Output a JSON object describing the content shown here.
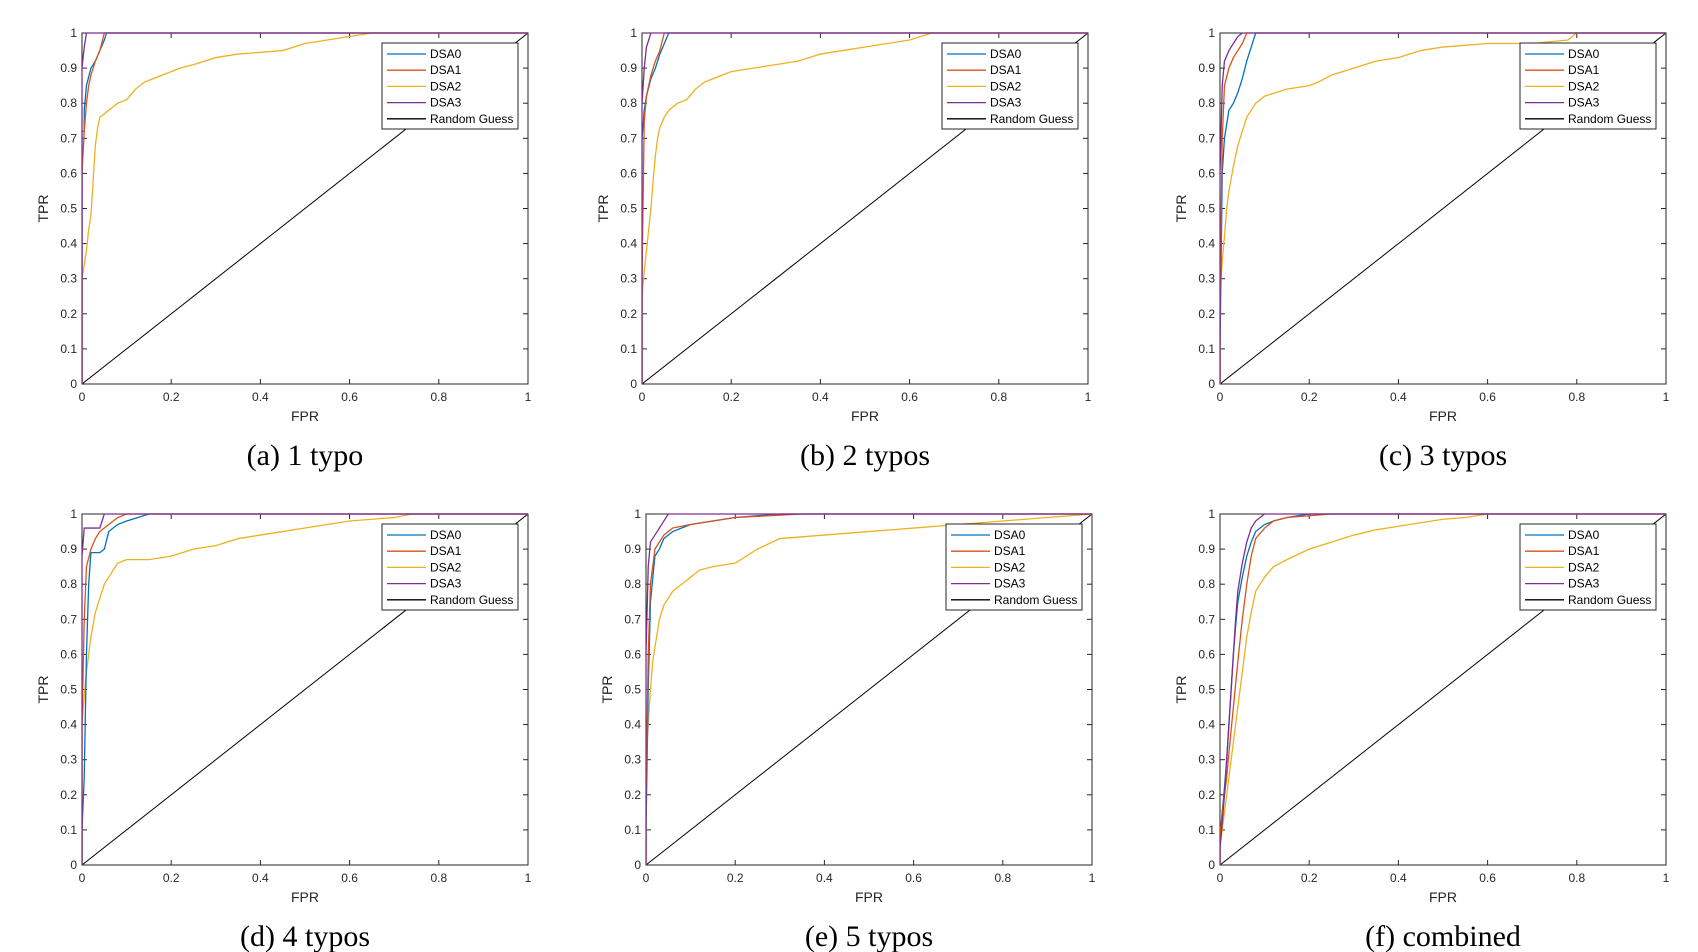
{
  "figure": {
    "legend_entries": [
      "DSA0",
      "DSA1",
      "DSA2",
      "DSA3",
      "Random Guess"
    ],
    "series_colors": {
      "DSA0": "#0072BD",
      "DSA1": "#D95319",
      "DSA2": "#EDB120",
      "DSA3": "#7E2F8E",
      "Random Guess": "#000000"
    }
  },
  "chart_data": [
    {
      "type": "line",
      "caption": "(a) 1 typo",
      "xlabel": "FPR",
      "ylabel": "TPR",
      "xlim": [
        0,
        1
      ],
      "ylim": [
        0,
        1
      ],
      "xticks": [
        "0",
        "0.2",
        "0.4",
        "0.6",
        "0.8",
        "1"
      ],
      "yticks": [
        "0",
        "0.1",
        "0.2",
        "0.3",
        "0.4",
        "0.5",
        "0.6",
        "0.7",
        "0.8",
        "0.9",
        "1"
      ],
      "legend_position": "top-right",
      "series": [
        {
          "name": "DSA0",
          "x": [
            0,
            0,
            0.005,
            0.005,
            0.01,
            0.02,
            0.03,
            0.04,
            0.05,
            0.055,
            1
          ],
          "y": [
            0,
            0.72,
            0.72,
            0.78,
            0.85,
            0.9,
            0.92,
            0.95,
            0.98,
            1,
            1
          ]
        },
        {
          "name": "DSA1",
          "x": [
            0,
            0,
            0.005,
            0.01,
            0.015,
            0.02,
            0.03,
            0.04,
            0.05,
            1
          ],
          "y": [
            0,
            0.6,
            0.72,
            0.8,
            0.85,
            0.88,
            0.92,
            0.95,
            1,
            1
          ]
        },
        {
          "name": "DSA2",
          "x": [
            0,
            0,
            0.005,
            0.01,
            0.015,
            0.02,
            0.025,
            0.03,
            0.035,
            0.04,
            0.05,
            0.06,
            0.07,
            0.08,
            0.1,
            0.12,
            0.14,
            0.16,
            0.18,
            0.2,
            0.22,
            0.25,
            0.3,
            0.35,
            0.45,
            0.5,
            0.55,
            0.6,
            0.65,
            1
          ],
          "y": [
            0,
            0.3,
            0.34,
            0.38,
            0.44,
            0.48,
            0.58,
            0.68,
            0.73,
            0.76,
            0.77,
            0.78,
            0.79,
            0.8,
            0.81,
            0.84,
            0.86,
            0.87,
            0.88,
            0.89,
            0.9,
            0.91,
            0.93,
            0.94,
            0.95,
            0.97,
            0.98,
            0.99,
            1,
            1
          ]
        },
        {
          "name": "DSA3",
          "x": [
            0,
            0,
            0.005,
            0.01,
            1
          ],
          "y": [
            0,
            0.9,
            0.96,
            1,
            1
          ]
        },
        {
          "name": "Random Guess",
          "x": [
            0,
            1
          ],
          "y": [
            0,
            1
          ]
        }
      ]
    },
    {
      "type": "line",
      "caption": "(b) 2 typos",
      "xlabel": "FPR",
      "ylabel": "TPR",
      "xlim": [
        0,
        1
      ],
      "ylim": [
        0,
        1
      ],
      "xticks": [
        "0",
        "0.2",
        "0.4",
        "0.6",
        "0.8",
        "1"
      ],
      "yticks": [
        "0",
        "0.1",
        "0.2",
        "0.3",
        "0.4",
        "0.5",
        "0.6",
        "0.7",
        "0.8",
        "0.9",
        "1"
      ],
      "legend_position": "top-right",
      "series": [
        {
          "name": "DSA0",
          "x": [
            0,
            0,
            0.005,
            0.01,
            0.02,
            0.03,
            0.04,
            0.05,
            0.06,
            1
          ],
          "y": [
            0,
            0.7,
            0.78,
            0.82,
            0.87,
            0.9,
            0.94,
            0.97,
            1,
            1
          ]
        },
        {
          "name": "DSA1",
          "x": [
            0,
            0,
            0.005,
            0.01,
            0.02,
            0.03,
            0.04,
            0.05,
            1
          ],
          "y": [
            0,
            0.3,
            0.75,
            0.82,
            0.88,
            0.92,
            0.95,
            1,
            1
          ]
        },
        {
          "name": "DSA2",
          "x": [
            0,
            0,
            0.005,
            0.01,
            0.015,
            0.02,
            0.025,
            0.03,
            0.035,
            0.04,
            0.05,
            0.06,
            0.08,
            0.1,
            0.12,
            0.14,
            0.16,
            0.18,
            0.2,
            0.25,
            0.3,
            0.35,
            0.4,
            0.45,
            0.5,
            0.55,
            0.6,
            0.65,
            1
          ],
          "y": [
            0,
            0.25,
            0.32,
            0.38,
            0.44,
            0.5,
            0.58,
            0.65,
            0.7,
            0.73,
            0.76,
            0.78,
            0.8,
            0.81,
            0.84,
            0.86,
            0.87,
            0.88,
            0.89,
            0.9,
            0.91,
            0.92,
            0.94,
            0.95,
            0.96,
            0.97,
            0.98,
            1,
            1
          ]
        },
        {
          "name": "DSA3",
          "x": [
            0,
            0,
            0.005,
            0.01,
            0.02,
            1
          ],
          "y": [
            0,
            0.8,
            0.9,
            0.96,
            1,
            1
          ]
        },
        {
          "name": "Random Guess",
          "x": [
            0,
            1
          ],
          "y": [
            0,
            1
          ]
        }
      ]
    },
    {
      "type": "line",
      "caption": "(c) 3 typos",
      "xlabel": "FPR",
      "ylabel": "TPR",
      "xlim": [
        0,
        1
      ],
      "ylim": [
        0,
        1
      ],
      "xticks": [
        "0",
        "0.2",
        "0.4",
        "0.6",
        "0.8",
        "1"
      ],
      "yticks": [
        "0",
        "0.1",
        "0.2",
        "0.3",
        "0.4",
        "0.5",
        "0.6",
        "0.7",
        "0.8",
        "0.9",
        "1"
      ],
      "legend_position": "top-right",
      "series": [
        {
          "name": "DSA0",
          "x": [
            0,
            0,
            0.005,
            0.01,
            0.02,
            0.03,
            0.04,
            0.05,
            0.06,
            0.07,
            0.08,
            1
          ],
          "y": [
            0,
            0.1,
            0.6,
            0.7,
            0.78,
            0.8,
            0.83,
            0.87,
            0.92,
            0.96,
            1,
            1
          ]
        },
        {
          "name": "DSA1",
          "x": [
            0,
            0,
            0.005,
            0.01,
            0.02,
            0.03,
            0.04,
            0.05,
            0.06,
            1
          ],
          "y": [
            0,
            0.25,
            0.7,
            0.85,
            0.9,
            0.93,
            0.95,
            0.97,
            1,
            1
          ]
        },
        {
          "name": "DSA2",
          "x": [
            0,
            0,
            0.005,
            0.01,
            0.015,
            0.02,
            0.03,
            0.04,
            0.05,
            0.06,
            0.08,
            0.1,
            0.15,
            0.2,
            0.22,
            0.25,
            0.3,
            0.35,
            0.4,
            0.45,
            0.5,
            0.6,
            0.7,
            0.78,
            0.8,
            1
          ],
          "y": [
            0,
            0.25,
            0.35,
            0.42,
            0.5,
            0.55,
            0.62,
            0.68,
            0.72,
            0.76,
            0.8,
            0.82,
            0.84,
            0.85,
            0.86,
            0.88,
            0.9,
            0.92,
            0.93,
            0.95,
            0.96,
            0.97,
            0.97,
            0.98,
            1,
            1
          ]
        },
        {
          "name": "DSA3",
          "x": [
            0,
            0,
            0.005,
            0.01,
            0.02,
            0.03,
            0.04,
            0.05,
            1
          ],
          "y": [
            0,
            0.6,
            0.85,
            0.92,
            0.95,
            0.97,
            0.99,
            1,
            1
          ]
        },
        {
          "name": "Random Guess",
          "x": [
            0,
            1
          ],
          "y": [
            0,
            1
          ]
        }
      ]
    },
    {
      "type": "line",
      "caption": "(d) 4 typos",
      "xlabel": "FPR",
      "ylabel": "TPR",
      "xlim": [
        0,
        1
      ],
      "ylim": [
        0,
        1
      ],
      "xticks": [
        "0",
        "0.2",
        "0.4",
        "0.6",
        "0.8",
        "1"
      ],
      "yticks": [
        "0",
        "0.1",
        "0.2",
        "0.3",
        "0.4",
        "0.5",
        "0.6",
        "0.7",
        "0.8",
        "0.9",
        "1"
      ],
      "legend_position": "top-right",
      "series": [
        {
          "name": "DSA0",
          "x": [
            0,
            0,
            0.005,
            0.01,
            0.015,
            0.02,
            0.03,
            0.04,
            0.05,
            0.06,
            0.08,
            0.1,
            0.15,
            1
          ],
          "y": [
            0,
            0.1,
            0.25,
            0.6,
            0.8,
            0.89,
            0.89,
            0.89,
            0.9,
            0.95,
            0.97,
            0.98,
            1,
            1
          ]
        },
        {
          "name": "DSA1",
          "x": [
            0,
            0,
            0.005,
            0.01,
            0.02,
            0.03,
            0.04,
            0.06,
            0.08,
            0.1,
            1
          ],
          "y": [
            0,
            0.4,
            0.7,
            0.85,
            0.9,
            0.93,
            0.95,
            0.97,
            0.99,
            1,
            1
          ]
        },
        {
          "name": "DSA2",
          "x": [
            0,
            0,
            0.005,
            0.01,
            0.015,
            0.02,
            0.03,
            0.04,
            0.05,
            0.06,
            0.07,
            0.08,
            0.1,
            0.15,
            0.2,
            0.25,
            0.3,
            0.35,
            0.4,
            0.45,
            0.5,
            0.55,
            0.6,
            0.7,
            0.74,
            1
          ],
          "y": [
            0,
            0.4,
            0.48,
            0.55,
            0.6,
            0.65,
            0.72,
            0.76,
            0.8,
            0.82,
            0.84,
            0.86,
            0.87,
            0.87,
            0.88,
            0.9,
            0.91,
            0.93,
            0.94,
            0.95,
            0.96,
            0.97,
            0.98,
            0.99,
            1,
            1
          ]
        },
        {
          "name": "DSA3",
          "x": [
            0,
            0,
            0.005,
            0.02,
            0.04,
            0.05,
            1
          ],
          "y": [
            0,
            0.88,
            0.96,
            0.96,
            0.96,
            1,
            1
          ]
        },
        {
          "name": "Random Guess",
          "x": [
            0,
            1
          ],
          "y": [
            0,
            1
          ]
        }
      ]
    },
    {
      "type": "line",
      "caption": "(e) 5 typos",
      "xlabel": "FPR",
      "ylabel": "TPR",
      "xlim": [
        0,
        1
      ],
      "ylim": [
        0,
        1
      ],
      "xticks": [
        "0",
        "0.2",
        "0.4",
        "0.6",
        "0.8",
        "1"
      ],
      "yticks": [
        "0",
        "0.1",
        "0.2",
        "0.3",
        "0.4",
        "0.5",
        "0.6",
        "0.7",
        "0.8",
        "0.9",
        "1"
      ],
      "legend_position": "top-right",
      "series": [
        {
          "name": "DSA0",
          "x": [
            0,
            0,
            0.005,
            0.01,
            0.02,
            0.03,
            0.04,
            0.06,
            0.08,
            0.1,
            0.15,
            0.2,
            0.3,
            1
          ],
          "y": [
            0,
            0.1,
            0.5,
            0.75,
            0.88,
            0.9,
            0.93,
            0.95,
            0.96,
            0.97,
            0.98,
            0.99,
            1,
            1
          ]
        },
        {
          "name": "DSA1",
          "x": [
            0,
            0,
            0.005,
            0.01,
            0.02,
            0.04,
            0.06,
            0.1,
            0.15,
            0.2,
            0.35,
            1
          ],
          "y": [
            0,
            0.2,
            0.6,
            0.8,
            0.9,
            0.94,
            0.96,
            0.97,
            0.98,
            0.99,
            1,
            1
          ]
        },
        {
          "name": "DSA2",
          "x": [
            0,
            0,
            0.005,
            0.01,
            0.015,
            0.02,
            0.03,
            0.04,
            0.05,
            0.06,
            0.08,
            0.1,
            0.12,
            0.15,
            0.2,
            0.25,
            0.3,
            0.4,
            0.5,
            0.6,
            0.7,
            0.8,
            0.9,
            1
          ],
          "y": [
            0,
            0.3,
            0.4,
            0.5,
            0.58,
            0.62,
            0.7,
            0.74,
            0.76,
            0.78,
            0.8,
            0.82,
            0.84,
            0.85,
            0.86,
            0.9,
            0.93,
            0.94,
            0.95,
            0.96,
            0.97,
            0.98,
            0.99,
            1
          ]
        },
        {
          "name": "DSA3",
          "x": [
            0,
            0,
            0.005,
            0.01,
            0.02,
            0.03,
            0.05,
            1
          ],
          "y": [
            0,
            0.6,
            0.85,
            0.92,
            0.94,
            0.96,
            1,
            1
          ]
        },
        {
          "name": "Random Guess",
          "x": [
            0,
            1
          ],
          "y": [
            0,
            1
          ]
        }
      ]
    },
    {
      "type": "line",
      "caption": "(f) combined",
      "xlabel": "FPR",
      "ylabel": "TPR",
      "xlim": [
        0,
        1
      ],
      "ylim": [
        0,
        1
      ],
      "xticks": [
        "0",
        "0.2",
        "0.4",
        "0.6",
        "0.8",
        "1"
      ],
      "yticks": [
        "0",
        "0.1",
        "0.2",
        "0.3",
        "0.4",
        "0.5",
        "0.6",
        "0.7",
        "0.8",
        "0.9",
        "1"
      ],
      "legend_position": "top-right",
      "series": [
        {
          "name": "DSA0",
          "x": [
            0,
            0,
            0.005,
            0.01,
            0.015,
            0.02,
            0.025,
            0.03,
            0.035,
            0.04,
            0.05,
            0.06,
            0.07,
            0.08,
            0.1,
            0.12,
            0.15,
            0.2,
            0.3,
            1
          ],
          "y": [
            0,
            0.05,
            0.15,
            0.22,
            0.3,
            0.4,
            0.5,
            0.6,
            0.68,
            0.75,
            0.82,
            0.88,
            0.92,
            0.95,
            0.97,
            0.98,
            0.99,
            1,
            1,
            1
          ]
        },
        {
          "name": "DSA1",
          "x": [
            0,
            0,
            0.005,
            0.01,
            0.015,
            0.02,
            0.03,
            0.04,
            0.05,
            0.06,
            0.07,
            0.08,
            0.1,
            0.12,
            0.15,
            0.2,
            0.25,
            1
          ],
          "y": [
            0,
            0.08,
            0.15,
            0.2,
            0.25,
            0.32,
            0.45,
            0.58,
            0.7,
            0.8,
            0.88,
            0.93,
            0.96,
            0.98,
            0.99,
            0.995,
            1,
            1
          ]
        },
        {
          "name": "DSA2",
          "x": [
            0,
            0,
            0.005,
            0.01,
            0.015,
            0.02,
            0.03,
            0.04,
            0.05,
            0.06,
            0.07,
            0.08,
            0.1,
            0.12,
            0.15,
            0.2,
            0.25,
            0.3,
            0.35,
            0.4,
            0.45,
            0.5,
            0.55,
            0.6,
            1
          ],
          "y": [
            0,
            0.05,
            0.1,
            0.15,
            0.2,
            0.25,
            0.35,
            0.45,
            0.55,
            0.65,
            0.72,
            0.78,
            0.82,
            0.85,
            0.87,
            0.9,
            0.92,
            0.94,
            0.955,
            0.965,
            0.975,
            0.985,
            0.99,
            1,
            1
          ]
        },
        {
          "name": "DSA3",
          "x": [
            0,
            0,
            0.005,
            0.01,
            0.015,
            0.02,
            0.025,
            0.03,
            0.035,
            0.04,
            0.05,
            0.06,
            0.07,
            0.08,
            0.09,
            0.1,
            1
          ],
          "y": [
            0,
            0.05,
            0.12,
            0.2,
            0.3,
            0.4,
            0.5,
            0.6,
            0.7,
            0.78,
            0.86,
            0.92,
            0.96,
            0.98,
            0.99,
            1,
            1
          ]
        },
        {
          "name": "Random Guess",
          "x": [
            0,
            1
          ],
          "y": [
            0,
            1
          ]
        }
      ]
    }
  ]
}
